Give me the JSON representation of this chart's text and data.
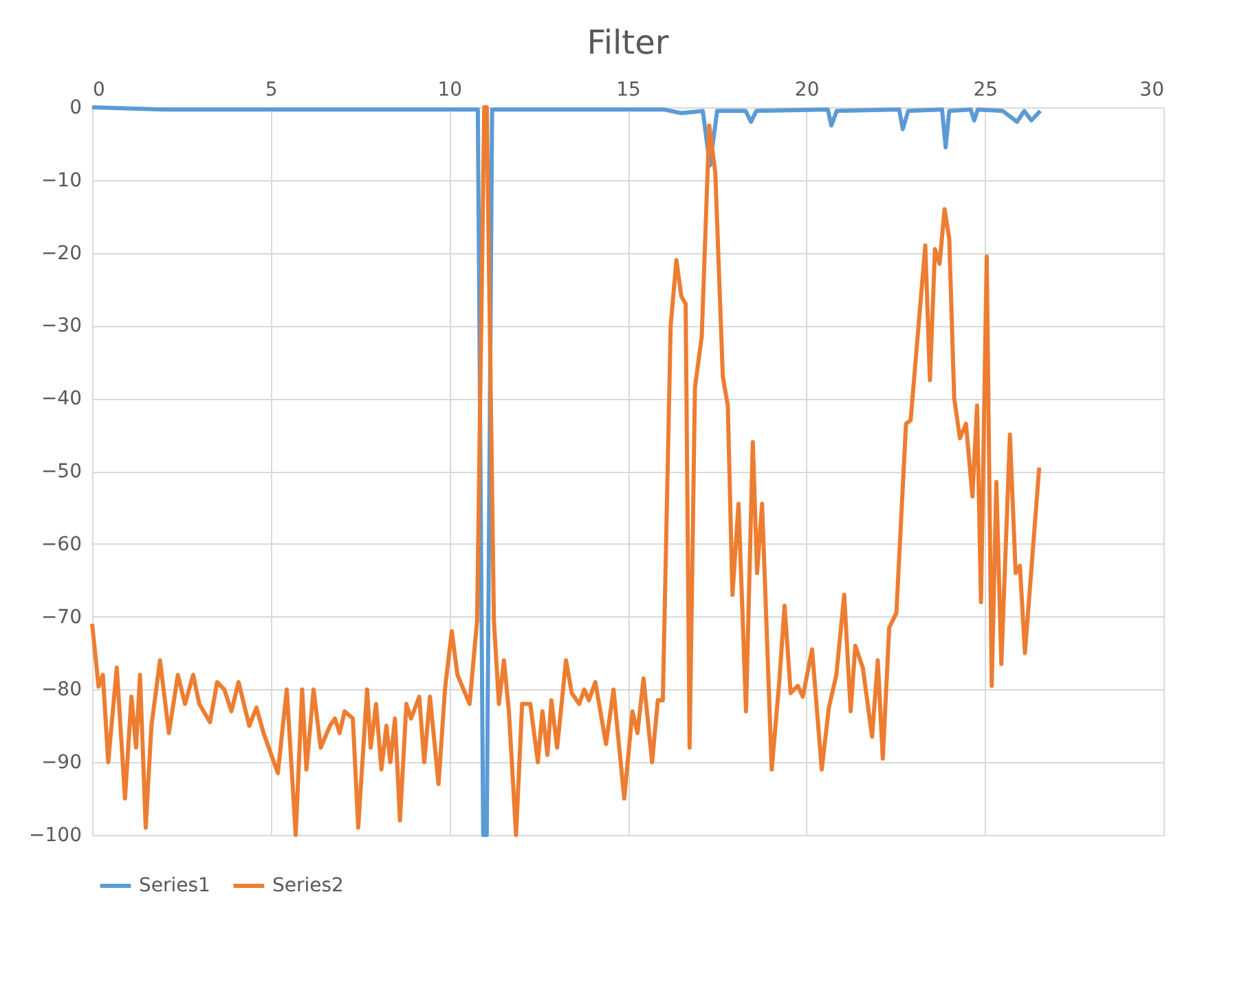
{
  "chart_data": {
    "type": "line",
    "title": "Filter",
    "xlim": [
      0,
      30
    ],
    "xticks": [
      0,
      5,
      10,
      15,
      20,
      25,
      30
    ],
    "ylim": [
      -100,
      0
    ],
    "yticks": [
      0,
      -10,
      -20,
      -30,
      -40,
      -50,
      -60,
      -70,
      -80,
      -90,
      -100
    ],
    "grid": true,
    "legend": "bottom",
    "marker": "none",
    "line_style": "solid",
    "series": [
      {
        "name": "Series1",
        "color": "#5b9bd5",
        "x": [
          0,
          2,
          10.8,
          10.95,
          11.05,
          11.2,
          16,
          16.5,
          17.1,
          17.3,
          17.5,
          18.3,
          18.45,
          18.6,
          20.6,
          20.7,
          20.85,
          22.6,
          22.7,
          22.85,
          23.8,
          23.9,
          24.0,
          24.6,
          24.7,
          24.8,
          25.5,
          25.9,
          26.1,
          26.3,
          26.55
        ],
        "values": [
          0,
          -0.3,
          -0.3,
          -100,
          -100,
          -0.3,
          -0.3,
          -0.8,
          -0.5,
          -8,
          -0.5,
          -0.5,
          -2,
          -0.5,
          -0.3,
          -2.5,
          -0.5,
          -0.3,
          -3,
          -0.5,
          -0.3,
          -5.5,
          -0.5,
          -0.3,
          -1.8,
          -0.3,
          -0.5,
          -2,
          -0.5,
          -1.8,
          -0.5
        ]
      },
      {
        "name": "Series2",
        "color": "#ed7d31",
        "x": [
          0,
          0.18,
          0.3,
          0.45,
          0.69,
          0.92,
          1.1,
          1.23,
          1.34,
          1.5,
          1.66,
          1.9,
          2.15,
          2.4,
          2.6,
          2.83,
          3.0,
          3.3,
          3.5,
          3.7,
          3.9,
          4.1,
          4.4,
          4.6,
          4.8,
          5.2,
          5.45,
          5.7,
          5.88,
          6.0,
          6.2,
          6.4,
          6.66,
          6.8,
          6.93,
          7.07,
          7.3,
          7.45,
          7.7,
          7.8,
          7.95,
          8.1,
          8.24,
          8.35,
          8.48,
          8.62,
          8.8,
          8.93,
          9.16,
          9.3,
          9.46,
          9.7,
          9.88,
          10.07,
          10.23,
          10.57,
          10.78,
          10.98,
          11.05,
          11.25,
          11.39,
          11.53,
          11.67,
          11.87,
          12.04,
          12.27,
          12.48,
          12.61,
          12.75,
          12.86,
          13.02,
          13.27,
          13.43,
          13.64,
          13.78,
          13.91,
          14.09,
          14.39,
          14.6,
          14.9,
          15.13,
          15.27,
          15.44,
          15.68,
          15.84,
          15.98,
          16.2,
          16.36,
          16.5,
          16.62,
          16.73,
          16.88,
          17.07,
          17.28,
          17.45,
          17.66,
          17.8,
          17.93,
          18.1,
          18.31,
          18.5,
          18.62,
          18.76,
          19.03,
          19.24,
          19.39,
          19.56,
          19.76,
          19.9,
          20.16,
          20.43,
          20.63,
          20.84,
          21.06,
          21.24,
          21.37,
          21.58,
          21.84,
          22.0,
          22.14,
          22.32,
          22.52,
          22.79,
          22.92,
          23.09,
          23.33,
          23.46,
          23.6,
          23.73,
          23.87,
          24.0,
          24.14,
          24.3,
          24.47,
          24.65,
          24.78,
          24.89,
          25.05,
          25.19,
          25.32,
          25.46,
          25.7,
          25.86,
          25.98,
          26.12,
          26.52
        ],
        "values": [
          -71,
          -79.6,
          -78,
          -90,
          -77,
          -95,
          -81,
          -88,
          -78,
          -99,
          -85,
          -76,
          -86,
          -78,
          -82,
          -78,
          -82,
          -84.5,
          -79,
          -80,
          -83,
          -79,
          -85,
          -82.5,
          -86,
          -91.5,
          -80,
          -100,
          -80,
          -91,
          -80,
          -88,
          -85,
          -84,
          -86,
          -83,
          -84,
          -99,
          -80,
          -88,
          -82,
          -91,
          -85,
          -90,
          -84,
          -98,
          -82,
          -84,
          -81,
          -90,
          -81,
          -93,
          -80,
          -72,
          -78,
          -82,
          -70.5,
          0,
          0,
          -70.5,
          -82,
          -76,
          -83,
          -100,
          -82,
          -82,
          -90,
          -83,
          -89,
          -81.5,
          -88,
          -76,
          -80.5,
          -82,
          -80,
          -81.5,
          -79,
          -87.5,
          -80,
          -95,
          -83,
          -86,
          -78.5,
          -90,
          -81.5,
          -81.5,
          -30,
          -21,
          -26,
          -27,
          -88,
          -38.5,
          -31.5,
          -2.5,
          -9,
          -37,
          -41,
          -67,
          -54.5,
          -83,
          -46,
          -64,
          -54.5,
          -91,
          -79,
          -68.5,
          -80.5,
          -79.5,
          -81,
          -74.5,
          -91,
          -82.5,
          -78,
          -67,
          -83,
          -74,
          -77,
          -86.5,
          -76,
          -89.5,
          -71.5,
          -69.5,
          -43.5,
          -43,
          -33,
          -19,
          -37.5,
          -19.5,
          -21.5,
          -14,
          -18,
          -40,
          -45.5,
          -43.5,
          -53.5,
          -41,
          -68,
          -20.5,
          -79.5,
          -51.5,
          -76.5,
          -45,
          -64,
          -63,
          -75,
          -49.5
        ]
      }
    ]
  }
}
